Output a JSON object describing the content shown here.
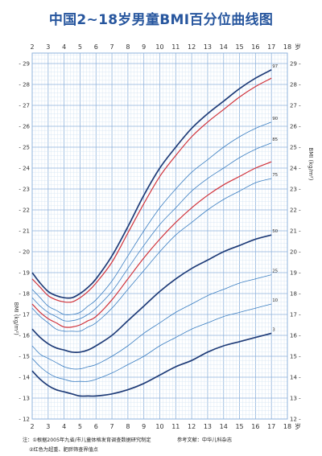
{
  "title": "中国2~18岁男童BMI百分位曲线图",
  "notes": {
    "note_1": "注：①根据2005年九省/市儿童体格发育调查数据研究制定",
    "note_2": "②红色为超重、肥胖筛查界值点",
    "reference": "参考文献：中华儿科杂志"
  },
  "colors": {
    "grid": "#8fb3dc",
    "grid_minor": "#d2e2f3",
    "dark_line": "#1f3c78",
    "thin_line": "#3c7fc2",
    "red_line": "#d1333b",
    "axis_text": "#2b5aa0"
  },
  "chart_data": {
    "type": "line",
    "title": "中国2~18岁男童BMI百分位曲线图",
    "xlabel": "岁",
    "ylabel": "BMI (kg/m²)",
    "xlim": [
      2,
      18
    ],
    "ylim": [
      12,
      29.5
    ],
    "x_ticks": [
      2,
      3,
      4,
      5,
      6,
      7,
      8,
      9,
      10,
      11,
      12,
      13,
      14,
      15,
      16,
      17,
      18
    ],
    "y_ticks": [
      12,
      13,
      14,
      15,
      16,
      17,
      18,
      19,
      20,
      21,
      22,
      23,
      24,
      25,
      26,
      27,
      28,
      29
    ],
    "grid": true,
    "x": [
      2,
      2.5,
      3,
      3.5,
      4,
      4.5,
      5,
      5.5,
      6,
      7,
      8,
      9,
      10,
      11,
      12,
      13,
      14,
      15,
      16,
      17
    ],
    "series": [
      {
        "name": "97",
        "style": "dark",
        "values": [
          19.0,
          18.5,
          18.1,
          17.9,
          17.8,
          17.8,
          18.0,
          18.3,
          18.7,
          19.8,
          21.2,
          22.7,
          24.0,
          25.0,
          25.9,
          26.6,
          27.2,
          27.8,
          28.3,
          28.7
        ]
      },
      {
        "name": "",
        "style": "red",
        "values": [
          18.7,
          18.3,
          17.9,
          17.7,
          17.6,
          17.6,
          17.8,
          18.1,
          18.5,
          19.5,
          20.9,
          22.3,
          23.6,
          24.6,
          25.5,
          26.2,
          26.8,
          27.4,
          27.9,
          28.3
        ]
      },
      {
        "name": "90",
        "style": "thin",
        "values": [
          18.2,
          17.8,
          17.4,
          17.2,
          17.0,
          17.0,
          17.1,
          17.4,
          17.7,
          18.6,
          19.8,
          21.0,
          22.1,
          23.0,
          23.8,
          24.4,
          25.0,
          25.5,
          25.9,
          26.2
        ]
      },
      {
        "name": "85",
        "style": "thin",
        "values": [
          17.8,
          17.4,
          17.1,
          16.9,
          16.7,
          16.7,
          16.8,
          17.0,
          17.3,
          18.1,
          19.2,
          20.3,
          21.3,
          22.1,
          22.9,
          23.5,
          24.0,
          24.5,
          24.9,
          25.2
        ]
      },
      {
        "name": "",
        "style": "red",
        "values": [
          17.5,
          17.1,
          16.8,
          16.6,
          16.4,
          16.4,
          16.5,
          16.7,
          16.9,
          17.7,
          18.7,
          19.7,
          20.6,
          21.4,
          22.1,
          22.7,
          23.2,
          23.6,
          24.0,
          24.3
        ]
      },
      {
        "name": "75",
        "style": "thin",
        "values": [
          17.3,
          16.9,
          16.6,
          16.3,
          16.2,
          16.2,
          16.2,
          16.4,
          16.6,
          17.3,
          18.2,
          19.1,
          20.0,
          20.8,
          21.4,
          22.0,
          22.5,
          22.9,
          23.3,
          23.5
        ]
      },
      {
        "name": "50",
        "style": "dark",
        "values": [
          16.3,
          15.9,
          15.6,
          15.4,
          15.3,
          15.2,
          15.2,
          15.3,
          15.5,
          16.0,
          16.7,
          17.4,
          18.1,
          18.7,
          19.2,
          19.6,
          20.0,
          20.3,
          20.6,
          20.8
        ]
      },
      {
        "name": "25",
        "style": "thin",
        "values": [
          15.5,
          15.1,
          14.9,
          14.7,
          14.5,
          14.4,
          14.4,
          14.5,
          14.6,
          15.0,
          15.5,
          16.1,
          16.6,
          17.1,
          17.5,
          17.9,
          18.2,
          18.5,
          18.7,
          18.9
        ]
      },
      {
        "name": "10",
        "style": "thin",
        "values": [
          14.9,
          14.5,
          14.2,
          14.0,
          13.9,
          13.8,
          13.8,
          13.8,
          13.9,
          14.2,
          14.6,
          15.0,
          15.5,
          15.9,
          16.3,
          16.6,
          16.9,
          17.1,
          17.3,
          17.5
        ]
      },
      {
        "name": "3",
        "style": "dark",
        "values": [
          14.3,
          13.9,
          13.6,
          13.4,
          13.3,
          13.2,
          13.1,
          13.1,
          13.1,
          13.2,
          13.4,
          13.7,
          14.1,
          14.5,
          14.8,
          15.2,
          15.5,
          15.7,
          15.9,
          16.1
        ]
      }
    ]
  }
}
